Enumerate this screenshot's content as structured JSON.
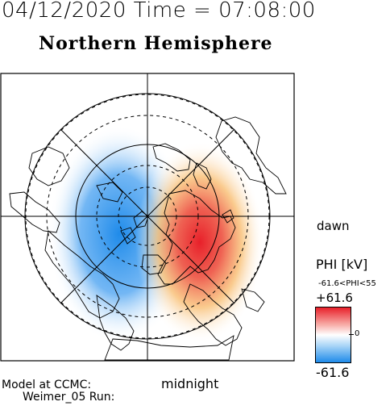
{
  "header": {
    "title_line": "04/12/2020 Time = 07:08:00",
    "subtitle": "Northern Hemisphere"
  },
  "map": {
    "orientation_right": "dawn",
    "orientation_bottom": "midnight"
  },
  "legend": {
    "title": "PHI [kV]",
    "range_text": "-61.6<PHI<55",
    "max_label": "+61.6",
    "mid_label": "0",
    "min_label": "-61.6",
    "colors": {
      "positive": "#e8202a",
      "zero": "#ffffff",
      "negative": "#1f8bea"
    }
  },
  "footer": {
    "model_line1": "Model at CCMC:",
    "model_line2": "Weimer_05 Run:"
  }
}
